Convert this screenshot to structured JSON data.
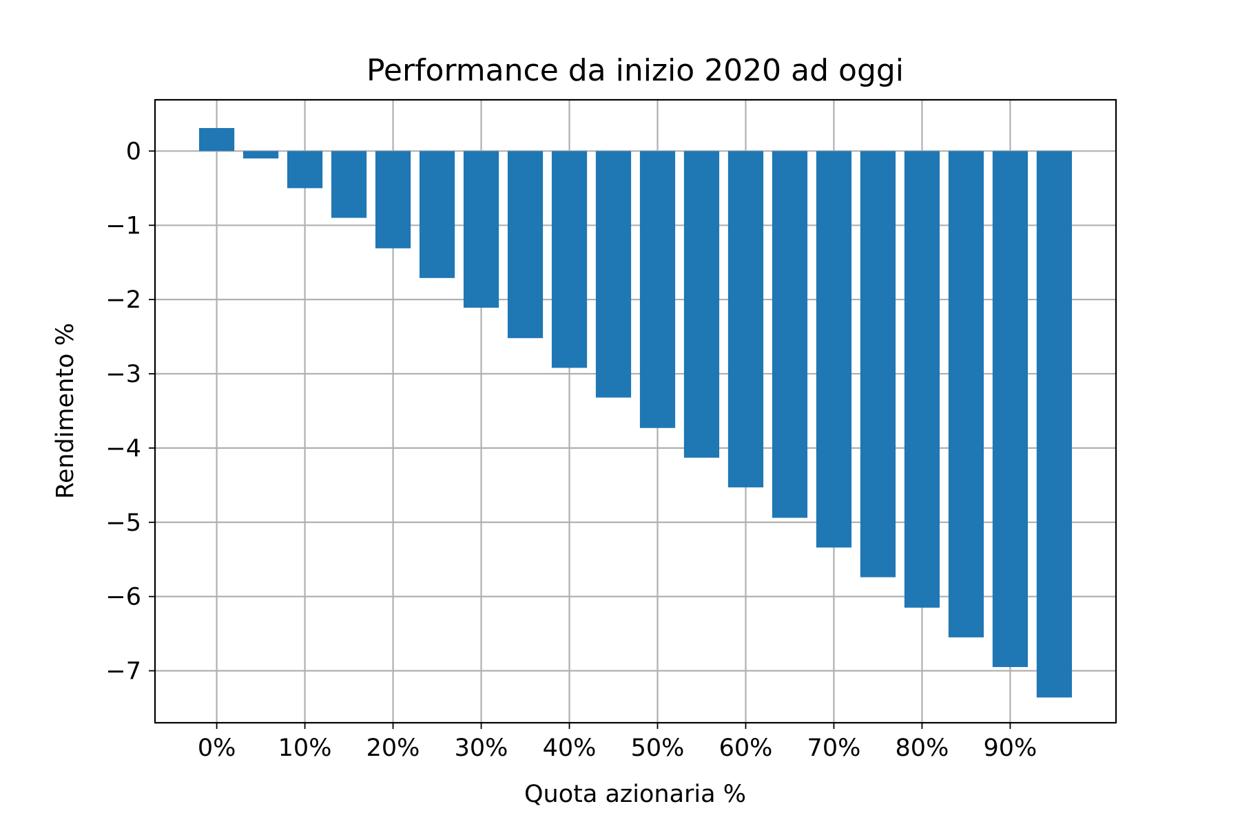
{
  "chart_data": {
    "type": "bar",
    "title": "Performance da inizio 2020 ad oggi",
    "xlabel": "Quota azionaria %",
    "ylabel": "Rendimento %",
    "x": [
      0,
      5,
      10,
      15,
      20,
      25,
      30,
      35,
      40,
      45,
      50,
      55,
      60,
      65,
      70,
      75,
      80,
      85,
      90,
      95
    ],
    "values": [
      0.31,
      -0.1,
      -0.5,
      -0.9,
      -1.31,
      -1.71,
      -2.11,
      -2.52,
      -2.92,
      -3.32,
      -3.73,
      -4.13,
      -4.53,
      -4.94,
      -5.34,
      -5.74,
      -6.15,
      -6.55,
      -6.95,
      -7.36
    ],
    "bar_width": 4,
    "xlim": [
      -7,
      102
    ],
    "ylim": [
      -7.7,
      0.69
    ],
    "x_ticks": [
      0,
      10,
      20,
      30,
      40,
      50,
      60,
      70,
      80,
      90
    ],
    "x_tick_labels": [
      "0%",
      "10%",
      "20%",
      "30%",
      "40%",
      "50%",
      "60%",
      "70%",
      "80%",
      "90%"
    ],
    "y_ticks": [
      0,
      -1,
      -2,
      -3,
      -4,
      -5,
      -6,
      -7
    ],
    "y_tick_labels": [
      "0",
      "−1",
      "−2",
      "−3",
      "−4",
      "−5",
      "−6",
      "−7"
    ],
    "grid": true,
    "bar_color": "#1f77b4"
  }
}
